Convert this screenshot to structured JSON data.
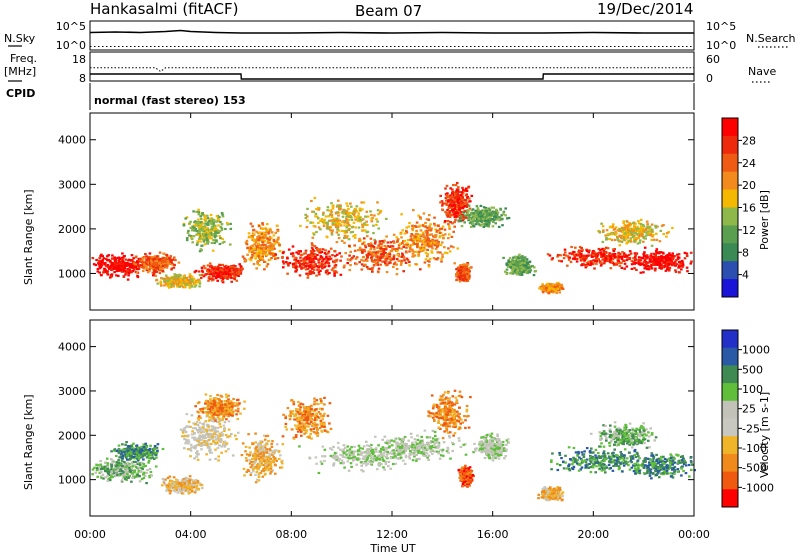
{
  "header": {
    "station": "Hankasalmi (fitACF)",
    "beam": "Beam 07",
    "date": "19/Dec/2014"
  },
  "top_panels": {
    "nsky_label": "N.Sky",
    "nsearch_label": "N.Search",
    "noise_ticks": [
      "10^5",
      "10^0"
    ],
    "freq_label_1": "Freq.",
    "freq_label_2": "[MHz]",
    "freq_ticks": [
      "18",
      "8"
    ],
    "nave_label": "Nave",
    "nave_ticks": [
      "60",
      "0"
    ],
    "cpid_label": "CPID",
    "cpid_text": "normal (fast stereo) 153"
  },
  "colors": {
    "power": [
      "#1a14d9",
      "#2a4fb0",
      "#3a8a55",
      "#5a9e4f",
      "#8fb84a",
      "#f5b800",
      "#f28a1e",
      "#ef5b12",
      "#ee2a0c",
      "#ff0000"
    ],
    "velocity": [
      "#2230c8",
      "#2a5aa6",
      "#3f8a52",
      "#5fbf3a",
      "#c2c2b8",
      "#c8c8c0",
      "#f0b429",
      "#f08a1c",
      "#ef5a10",
      "#ff0000"
    ]
  },
  "chart_data": [
    {
      "type": "line",
      "title": "N.Sky / N.Search",
      "x": [
        0,
        1,
        2,
        3,
        3.6,
        4,
        5,
        6,
        8,
        10,
        12,
        14,
        16,
        18,
        20,
        22,
        24
      ],
      "series": [
        {
          "name": "N.Sky",
          "values": [
            3.1,
            3.2,
            3.1,
            3.3,
            3.5,
            3.3,
            3.1,
            3.0,
            3.0,
            3.1,
            3.0,
            3.1,
            3.0,
            3.0,
            3.1,
            3.0,
            3.0
          ]
        },
        {
          "name": "N.Search",
          "values": [
            0.3,
            0.3,
            0.3,
            0.3,
            0.3,
            0.3,
            0.3,
            0.3,
            0.3,
            0.3,
            0.3,
            0.3,
            0.3,
            0.3,
            0.3,
            0.3,
            0.3
          ]
        }
      ],
      "ylim": [
        0,
        5
      ]
    },
    {
      "type": "line",
      "title": "Freq. / Nave",
      "x": [
        0,
        2.6,
        2.8,
        3.0,
        6.0,
        6.01,
        18.0,
        18.01,
        24
      ],
      "series": [
        {
          "name": "Freq.",
          "values": [
            12.5,
            12.5,
            11.0,
            12.5,
            12.5,
            12.5,
            12.5,
            12.5,
            12.5
          ]
        },
        {
          "name": "Nave",
          "values": [
            12,
            12,
            12,
            12,
            12,
            0,
            0,
            12,
            12
          ]
        }
      ],
      "ylim": [
        8,
        18
      ]
    },
    {
      "type": "heatmap",
      "title": "Power",
      "xlabel": "Time UT",
      "ylabel": "Slant Range [km]",
      "colorbar_label": "Power [dB]",
      "colorbar_ticks": [
        "4",
        "8",
        "12",
        "16",
        "20",
        "24",
        "28"
      ],
      "x_ticks": [
        "00:00",
        "04:00",
        "08:00",
        "12:00",
        "16:00",
        "20:00",
        "00:00"
      ],
      "y_ticks": [
        "1000",
        "2000",
        "3000",
        "4000"
      ],
      "xlim": [
        0,
        24
      ],
      "ylim": [
        180,
        4600
      ],
      "blobs": [
        {
          "t": 1.1,
          "r": 1200,
          "dt": 1.2,
          "dr": 280,
          "level": 9
        },
        {
          "t": 2.6,
          "r": 1250,
          "dt": 0.9,
          "dr": 230,
          "level": 7
        },
        {
          "t": 3.5,
          "r": 850,
          "dt": 0.9,
          "dr": 150,
          "level": 5
        },
        {
          "t": 4.6,
          "r": 2000,
          "dt": 0.9,
          "dr": 450,
          "level": 4
        },
        {
          "t": 5.2,
          "r": 1050,
          "dt": 1.0,
          "dr": 200,
          "level": 8
        },
        {
          "t": 6.8,
          "r": 1650,
          "dt": 0.8,
          "dr": 500,
          "level": 6
        },
        {
          "t": 8.8,
          "r": 1300,
          "dt": 1.4,
          "dr": 380,
          "level": 8
        },
        {
          "t": 10.0,
          "r": 2200,
          "dt": 1.6,
          "dr": 550,
          "level": 5
        },
        {
          "t": 11.6,
          "r": 1450,
          "dt": 1.6,
          "dr": 450,
          "level": 7
        },
        {
          "t": 13.3,
          "r": 1800,
          "dt": 1.3,
          "dr": 650,
          "level": 6
        },
        {
          "t": 14.5,
          "r": 2600,
          "dt": 0.6,
          "dr": 450,
          "level": 8
        },
        {
          "t": 14.8,
          "r": 1050,
          "dt": 0.3,
          "dr": 200,
          "level": 7
        },
        {
          "t": 15.6,
          "r": 2300,
          "dt": 1.0,
          "dr": 250,
          "level": 3
        },
        {
          "t": 17.0,
          "r": 1200,
          "dt": 0.6,
          "dr": 250,
          "level": 3
        },
        {
          "t": 18.3,
          "r": 700,
          "dt": 0.5,
          "dr": 120,
          "level": 6
        },
        {
          "t": 20.2,
          "r": 1400,
          "dt": 2.0,
          "dr": 250,
          "level": 8
        },
        {
          "t": 22.6,
          "r": 1300,
          "dt": 1.3,
          "dr": 250,
          "level": 9
        },
        {
          "t": 21.5,
          "r": 1950,
          "dt": 1.5,
          "dr": 300,
          "level": 5
        }
      ]
    },
    {
      "type": "heatmap",
      "title": "Velocity",
      "xlabel": "Time UT",
      "ylabel": "Slant Range [km]",
      "colorbar_label": "Velocity [m s-1]",
      "colorbar_ticks": [
        "1000",
        "500",
        "100",
        "25",
        "-25",
        "-100",
        "-500",
        "-1000"
      ],
      "x_ticks": [
        "00:00",
        "04:00",
        "08:00",
        "12:00",
        "16:00",
        "20:00",
        "00:00"
      ],
      "y_ticks": [
        "1000",
        "2000",
        "3000",
        "4000"
      ],
      "xlim": [
        0,
        24
      ],
      "ylim": [
        180,
        4600
      ],
      "blobs": [
        {
          "t": 1.2,
          "r": 1250,
          "dt": 1.3,
          "dr": 280,
          "level": 3
        },
        {
          "t": 1.8,
          "r": 1650,
          "dt": 1.0,
          "dr": 200,
          "level": 2
        },
        {
          "t": 3.6,
          "r": 900,
          "dt": 0.8,
          "dr": 200,
          "level": 6
        },
        {
          "t": 4.6,
          "r": 2000,
          "dt": 1.2,
          "dr": 550,
          "level": 5
        },
        {
          "t": 5.2,
          "r": 2650,
          "dt": 1.0,
          "dr": 300,
          "level": 7
        },
        {
          "t": 6.8,
          "r": 1500,
          "dt": 0.8,
          "dr": 550,
          "level": 6
        },
        {
          "t": 8.6,
          "r": 2400,
          "dt": 1.0,
          "dr": 500,
          "level": 7
        },
        {
          "t": 10.8,
          "r": 1550,
          "dt": 2.2,
          "dr": 350,
          "level": 4
        },
        {
          "t": 13.0,
          "r": 1750,
          "dt": 1.8,
          "dr": 350,
          "level": 4
        },
        {
          "t": 14.2,
          "r": 2500,
          "dt": 0.8,
          "dr": 500,
          "level": 7
        },
        {
          "t": 14.9,
          "r": 1100,
          "dt": 0.3,
          "dr": 250,
          "level": 8
        },
        {
          "t": 15.9,
          "r": 1750,
          "dt": 0.7,
          "dr": 300,
          "level": 4
        },
        {
          "t": 18.3,
          "r": 700,
          "dt": 0.5,
          "dr": 150,
          "level": 6
        },
        {
          "t": 20.2,
          "r": 1450,
          "dt": 2.0,
          "dr": 300,
          "level": 2
        },
        {
          "t": 22.6,
          "r": 1350,
          "dt": 1.4,
          "dr": 300,
          "level": 2
        },
        {
          "t": 21.2,
          "r": 2000,
          "dt": 1.3,
          "dr": 300,
          "level": 3
        }
      ]
    }
  ]
}
